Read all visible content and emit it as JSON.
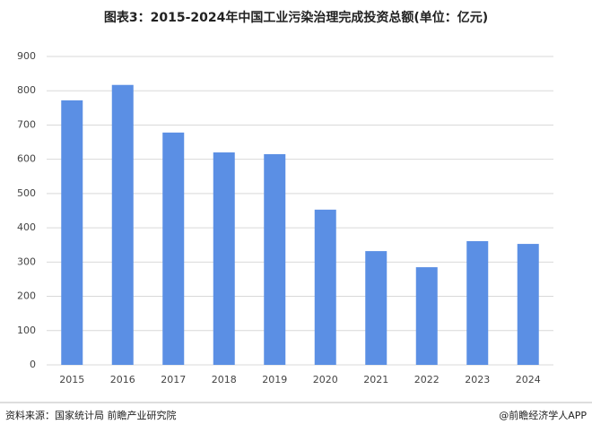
{
  "chart_data": {
    "type": "bar",
    "title": "图表3：2015-2024年中国工业污染治理完成投资总额(单位：亿元)",
    "categories": [
      "2015",
      "2016",
      "2017",
      "2018",
      "2019",
      "2020",
      "2021",
      "2022",
      "2023",
      "2024"
    ],
    "values": [
      772,
      817,
      678,
      620,
      615,
      453,
      332,
      285,
      361,
      353
    ],
    "color": "#5b8fe4",
    "ylim": [
      0,
      900
    ],
    "yticks": [
      0,
      100,
      200,
      300,
      400,
      500,
      600,
      700,
      800,
      900
    ],
    "grid": true,
    "source": "资料来源：国家统计局 前瞻产业研究院",
    "credit": "@前瞻经济学人APP"
  }
}
